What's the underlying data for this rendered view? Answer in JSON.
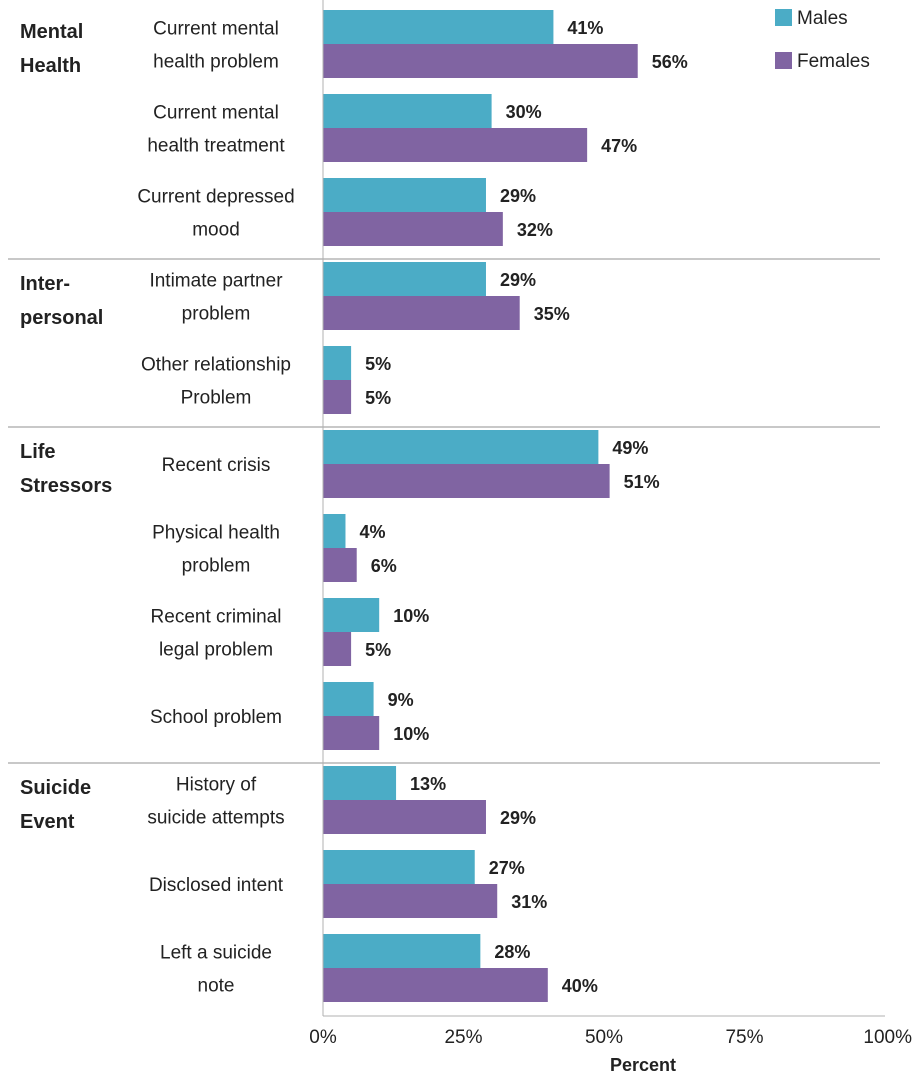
{
  "chart_data": {
    "type": "bar",
    "orientation": "horizontal",
    "xlabel": "Percent",
    "xlim": [
      0,
      100
    ],
    "xticks": [
      "0%",
      "25%",
      "50%",
      "75%",
      "100%"
    ],
    "legend_position": "top-right",
    "series": [
      {
        "name": "Males",
        "color": "#4BACC6"
      },
      {
        "name": "Females",
        "color": "#8064A2"
      }
    ],
    "groups": [
      {
        "label": [
          "Mental",
          "Health"
        ],
        "categories": [
          {
            "label": [
              "Current mental",
              "health problem"
            ],
            "values": [
              41,
              56
            ]
          },
          {
            "label": [
              "Current mental",
              "health treatment"
            ],
            "values": [
              30,
              47
            ]
          },
          {
            "label": [
              "Current depressed",
              "mood"
            ],
            "values": [
              29,
              32
            ]
          }
        ]
      },
      {
        "label": [
          "Inter-",
          "personal"
        ],
        "categories": [
          {
            "label": [
              "Intimate partner",
              "problem"
            ],
            "values": [
              29,
              35
            ]
          },
          {
            "label": [
              "Other relationship",
              "Problem"
            ],
            "values": [
              5,
              5
            ]
          }
        ]
      },
      {
        "label": [
          "Life",
          "Stressors"
        ],
        "categories": [
          {
            "label": [
              "Recent crisis"
            ],
            "values": [
              49,
              51
            ]
          },
          {
            "label": [
              "Physical health",
              "problem"
            ],
            "values": [
              4,
              6
            ]
          },
          {
            "label": [
              "Recent criminal",
              "legal problem"
            ],
            "values": [
              10,
              5
            ]
          },
          {
            "label": [
              "School problem"
            ],
            "values": [
              9,
              10
            ]
          }
        ]
      },
      {
        "label": [
          "Suicide",
          "Event"
        ],
        "categories": [
          {
            "label": [
              "History of",
              "suicide attempts"
            ],
            "values": [
              13,
              29
            ]
          },
          {
            "label": [
              "Disclosed intent"
            ],
            "values": [
              27,
              31
            ]
          },
          {
            "label": [
              "Left a suicide",
              "note"
            ],
            "values": [
              28,
              40
            ]
          }
        ]
      }
    ]
  }
}
